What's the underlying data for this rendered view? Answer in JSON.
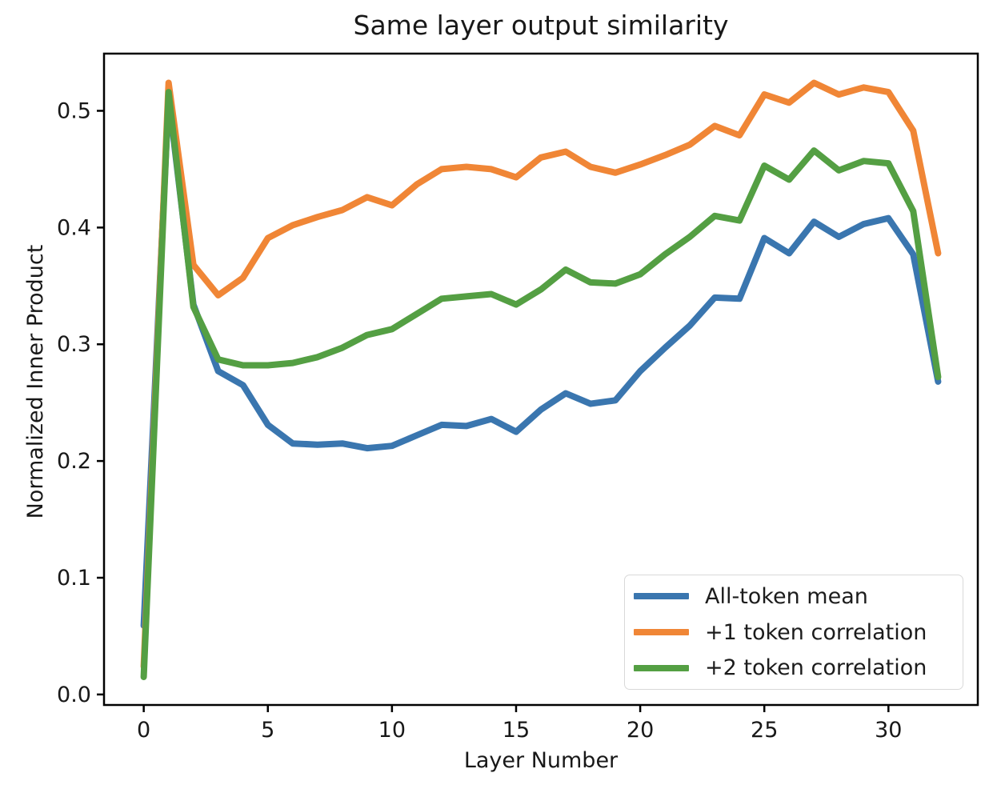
{
  "figure": {
    "background": "#ffffff",
    "text_color": "#181818"
  },
  "chart_data": {
    "type": "line",
    "title": "Same layer output similarity",
    "xlabel": "Layer Number",
    "ylabel": "Normalized Inner Product",
    "grid": false,
    "legend_position": "lower right",
    "xlim": [
      -1.6,
      33.6
    ],
    "ylim": [
      -0.009,
      0.549
    ],
    "x_ticks": [
      0,
      5,
      10,
      15,
      20,
      25,
      30
    ],
    "y_ticks": [
      0.0,
      0.1,
      0.2,
      0.3,
      0.4,
      0.5
    ],
    "y_tick_labels": [
      "0.0",
      "0.1",
      "0.2",
      "0.3",
      "0.4",
      "0.5"
    ],
    "x": [
      0,
      1,
      2,
      3,
      4,
      5,
      6,
      7,
      8,
      9,
      10,
      11,
      12,
      13,
      14,
      15,
      16,
      17,
      18,
      19,
      20,
      21,
      22,
      23,
      24,
      25,
      26,
      27,
      28,
      29,
      30,
      31,
      32
    ],
    "series": [
      {
        "name": "All-token mean",
        "color": "#3a76af",
        "values": [
          0.059,
          0.512,
          0.334,
          0.277,
          0.265,
          0.231,
          0.215,
          0.214,
          0.215,
          0.211,
          0.213,
          0.222,
          0.231,
          0.23,
          0.236,
          0.225,
          0.244,
          0.258,
          0.249,
          0.252,
          0.277,
          0.297,
          0.316,
          0.34,
          0.339,
          0.391,
          0.378,
          0.405,
          0.392,
          0.403,
          0.408,
          0.377,
          0.268
        ]
      },
      {
        "name": "+1 token correlation",
        "color": "#f08636",
        "values": [
          0.024,
          0.524,
          0.368,
          0.342,
          0.357,
          0.391,
          0.402,
          0.409,
          0.415,
          0.426,
          0.419,
          0.437,
          0.45,
          0.452,
          0.45,
          0.443,
          0.46,
          0.465,
          0.452,
          0.447,
          0.454,
          0.462,
          0.471,
          0.487,
          0.479,
          0.514,
          0.507,
          0.524,
          0.514,
          0.52,
          0.516,
          0.483,
          0.378
        ]
      },
      {
        "name": "+2 token correlation",
        "color": "#549f43",
        "values": [
          0.015,
          0.516,
          0.332,
          0.287,
          0.282,
          0.282,
          0.284,
          0.289,
          0.297,
          0.308,
          0.313,
          0.326,
          0.339,
          0.341,
          0.343,
          0.334,
          0.347,
          0.364,
          0.353,
          0.352,
          0.36,
          0.377,
          0.392,
          0.41,
          0.406,
          0.453,
          0.441,
          0.466,
          0.449,
          0.457,
          0.455,
          0.414,
          0.272
        ]
      }
    ]
  }
}
